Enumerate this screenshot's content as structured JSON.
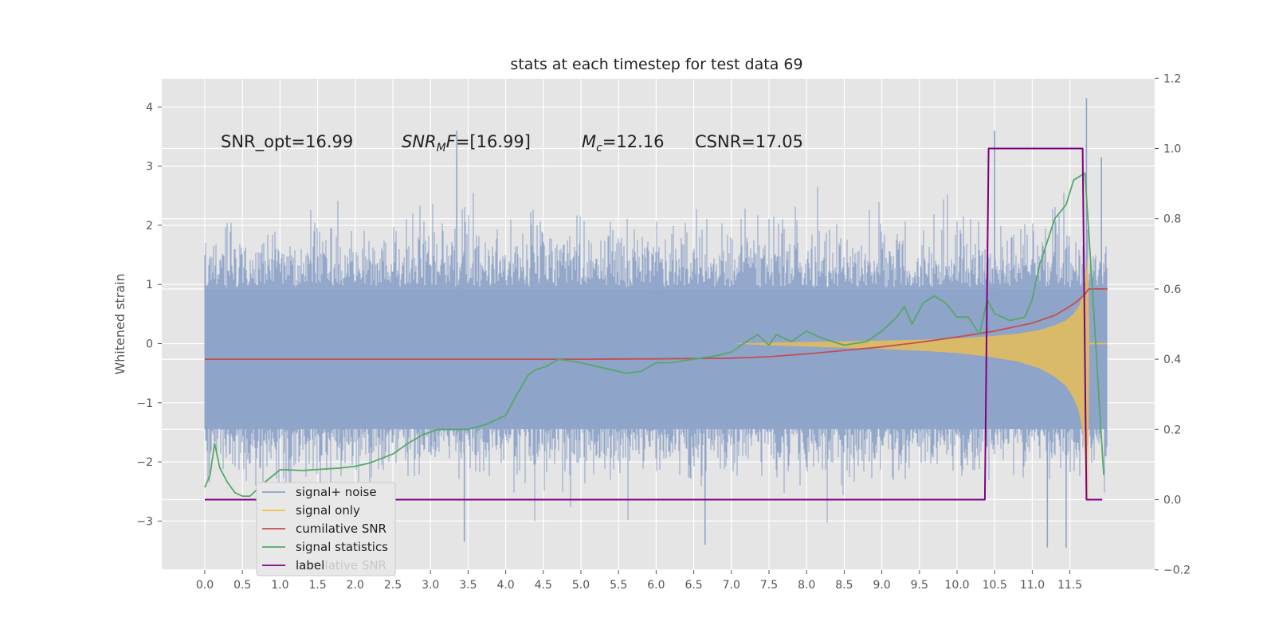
{
  "chart_data": {
    "type": "line",
    "title": "stats at each timestep for test data 69",
    "ylabel": "Whitened strain",
    "xlabel": "",
    "xlim": [
      -0.5,
      12.35
    ],
    "ylim": [
      -3.8,
      4.5
    ],
    "y2lim": [
      -0.2,
      1.2
    ],
    "grid": true,
    "x_ticks": [
      "0.0",
      "0.5",
      "1.0",
      "1.5",
      "2.0",
      "2.5",
      "3.0",
      "3.5",
      "4.0",
      "4.5",
      "5.0",
      "5.5",
      "6.0",
      "6.5",
      "7.0",
      "7.5",
      "8.0",
      "8.5",
      "9.0",
      "9.5",
      "10.0",
      "10.5",
      "11.0",
      "11.5"
    ],
    "y_ticks": [
      {
        "v": 4,
        "label": "4"
      },
      {
        "v": 3,
        "label": "3"
      },
      {
        "v": 2,
        "label": "2"
      },
      {
        "v": 1,
        "label": "1"
      },
      {
        "v": 0,
        "label": "0"
      },
      {
        "v": -1,
        "label": "−1"
      },
      {
        "v": -2,
        "label": "−2"
      },
      {
        "v": -3,
        "label": "−3"
      }
    ],
    "y2_ticks": [
      {
        "v": 1.2,
        "label": "1.2"
      },
      {
        "v": 1.0,
        "label": "1.0"
      },
      {
        "v": 0.8,
        "label": "0.8"
      },
      {
        "v": 0.6,
        "label": "0.6"
      },
      {
        "v": 0.4,
        "label": "0.4"
      },
      {
        "v": 0.2,
        "label": "0.2"
      },
      {
        "v": 0.0,
        "label": "0.0"
      },
      {
        "v": -0.2,
        "label": "−0.2"
      }
    ],
    "annotations": [
      {
        "text": "SNR_opt=16.99",
        "x": 0.2,
        "y": 3.3
      },
      {
        "text": "SNR_MF=[16.99]",
        "x": 2.6,
        "y": 3.3
      },
      {
        "text": "M_c=12.16",
        "x": 5.0,
        "y": 3.3
      },
      {
        "text": "CSNR=17.05",
        "x": 6.5,
        "y": 3.3
      }
    ],
    "legend": {
      "placement": "lower-left",
      "entries": [
        {
          "label": "signal+ noise",
          "color": "#8ea3c8"
        },
        {
          "label": "signal only",
          "color": "#f5c242"
        },
        {
          "label": "cumilative SNR",
          "color": "#c44e52"
        },
        {
          "label": "signal statistics",
          "color": "#55a868"
        },
        {
          "label": "label",
          "color": "#800080"
        }
      ],
      "ghost_text": "cumilative SNR"
    },
    "series": [
      {
        "name": "signal+ noise",
        "color": "#8ea3c8",
        "axis": "left",
        "style": "dense-noise",
        "x_range": [
          0.0,
          11.99
        ],
        "typical_amplitude": 1.9,
        "notable_peaks": [
          {
            "x": 3.35,
            "y": 3.6
          },
          {
            "x": 3.45,
            "y": -3.35
          },
          {
            "x": 6.0,
            "y": 1.15
          },
          {
            "x": 6.65,
            "y": -3.4
          },
          {
            "x": 10.5,
            "y": 3.6
          },
          {
            "x": 11.2,
            "y": -3.45
          },
          {
            "x": 11.45,
            "y": -3.45
          },
          {
            "x": 11.72,
            "y": 4.15
          },
          {
            "x": 11.92,
            "y": 3.15
          }
        ]
      },
      {
        "name": "signal only",
        "color": "#f5c242",
        "axis": "left",
        "style": "chirp-envelope",
        "envelope": [
          {
            "x": 7.0,
            "a": 0.0
          },
          {
            "x": 7.5,
            "a": 0.03
          },
          {
            "x": 8.0,
            "a": 0.05
          },
          {
            "x": 8.5,
            "a": 0.07
          },
          {
            "x": 9.0,
            "a": 0.09
          },
          {
            "x": 9.5,
            "a": 0.12
          },
          {
            "x": 10.0,
            "a": 0.16
          },
          {
            "x": 10.4,
            "a": 0.22
          },
          {
            "x": 10.8,
            "a": 0.3
          },
          {
            "x": 11.1,
            "a": 0.42
          },
          {
            "x": 11.3,
            "a": 0.56
          },
          {
            "x": 11.45,
            "a": 0.72
          },
          {
            "x": 11.55,
            "a": 0.92
          },
          {
            "x": 11.62,
            "a": 1.15
          },
          {
            "x": 11.68,
            "a": 1.55
          },
          {
            "x": 11.72,
            "a": 2.3
          },
          {
            "x": 11.74,
            "a": 2.75
          },
          {
            "x": 11.76,
            "a": 0.0
          }
        ]
      },
      {
        "name": "cumilative SNR",
        "color": "#c44e52",
        "axis": "right",
        "x": [
          0.0,
          3.0,
          5.0,
          6.0,
          7.0,
          7.5,
          8.0,
          8.5,
          9.0,
          9.5,
          10.0,
          10.5,
          11.0,
          11.3,
          11.5,
          11.6,
          11.7,
          11.75,
          12.0
        ],
        "y": [
          0.4,
          0.4,
          0.4,
          0.401,
          0.403,
          0.407,
          0.415,
          0.425,
          0.435,
          0.448,
          0.463,
          0.48,
          0.503,
          0.525,
          0.55,
          0.565,
          0.585,
          0.6,
          0.6
        ]
      },
      {
        "name": "signal statistics",
        "color": "#55a868",
        "axis": "right",
        "x": [
          0.0,
          0.07,
          0.13,
          0.2,
          0.3,
          0.4,
          0.5,
          0.6,
          0.8,
          1.0,
          1.1,
          1.3,
          1.5,
          1.8,
          2.0,
          2.2,
          2.5,
          2.7,
          2.9,
          3.1,
          3.3,
          3.5,
          3.75,
          4.0,
          4.15,
          4.3,
          4.4,
          4.55,
          4.7,
          5.0,
          5.2,
          5.4,
          5.6,
          5.8,
          6.0,
          6.2,
          6.5,
          6.8,
          7.0,
          7.2,
          7.35,
          7.5,
          7.6,
          7.8,
          8.0,
          8.2,
          8.5,
          8.8,
          9.0,
          9.2,
          9.3,
          9.4,
          9.55,
          9.7,
          9.85,
          10.0,
          10.15,
          10.3,
          10.4,
          10.5,
          10.7,
          10.9,
          11.0,
          11.1,
          11.3,
          11.45,
          11.55,
          11.7,
          11.8,
          11.9,
          11.95
        ],
        "y": [
          0.035,
          0.07,
          0.16,
          0.09,
          0.05,
          0.02,
          0.01,
          0.01,
          0.05,
          0.085,
          0.085,
          0.083,
          0.086,
          0.09,
          0.095,
          0.105,
          0.13,
          0.16,
          0.185,
          0.2,
          0.2,
          0.2,
          0.215,
          0.24,
          0.3,
          0.355,
          0.37,
          0.38,
          0.4,
          0.39,
          0.38,
          0.37,
          0.36,
          0.365,
          0.39,
          0.39,
          0.4,
          0.41,
          0.42,
          0.45,
          0.47,
          0.44,
          0.47,
          0.45,
          0.48,
          0.46,
          0.44,
          0.45,
          0.48,
          0.52,
          0.55,
          0.5,
          0.56,
          0.58,
          0.56,
          0.52,
          0.52,
          0.47,
          0.57,
          0.53,
          0.51,
          0.52,
          0.57,
          0.67,
          0.8,
          0.84,
          0.91,
          0.93,
          0.6,
          0.24,
          0.07
        ]
      },
      {
        "name": "label",
        "color": "#800080",
        "axis": "right",
        "style": "step",
        "x": [
          0.0,
          10.37,
          10.42,
          11.67,
          11.72,
          11.93
        ],
        "y": [
          0.0,
          0.0,
          1.0,
          1.0,
          0.0,
          0.0
        ]
      }
    ]
  }
}
